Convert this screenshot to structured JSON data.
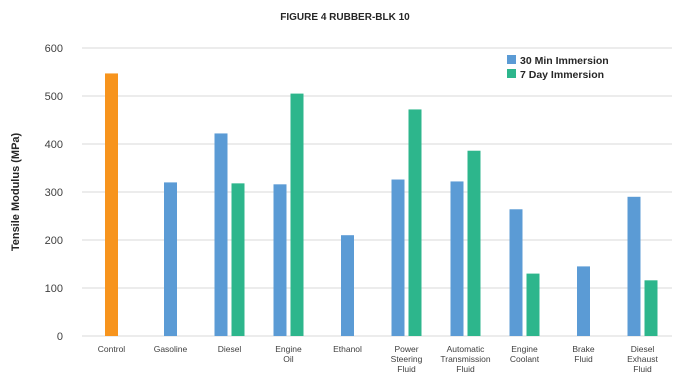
{
  "chart_data": {
    "type": "bar",
    "title": "FIGURE 4 RUBBER-BLK 10",
    "xlabel": "",
    "ylabel": "Tensile Modulus (MPa)",
    "ylim": [
      0,
      600
    ],
    "yticks": [
      0,
      100,
      200,
      300,
      400,
      500,
      600
    ],
    "grid": true,
    "legend_position": "top-right",
    "categories": [
      [
        "Control"
      ],
      [
        "Gasoline"
      ],
      [
        "Diesel"
      ],
      [
        "Engine",
        "Oil"
      ],
      [
        "Ethanol"
      ],
      [
        "Power",
        "Steering",
        "Fluid"
      ],
      [
        "Automatic",
        "Transmission",
        "Fluid"
      ],
      [
        "Engine",
        "Coolant"
      ],
      [
        "Brake",
        "Fluid"
      ],
      [
        "Diesel",
        "Exhaust",
        "Fluid"
      ]
    ],
    "series": [
      {
        "name": "Control",
        "color": "#f7941d",
        "in_legend": false,
        "values": [
          547,
          null,
          null,
          null,
          null,
          null,
          null,
          null,
          null,
          null
        ]
      },
      {
        "name": "30 Min Immersion",
        "color": "#5b9bd5",
        "in_legend": true,
        "values": [
          null,
          320,
          422,
          316,
          210,
          326,
          322,
          264,
          145,
          290
        ]
      },
      {
        "name": "7 Day Immersion",
        "color": "#2db68c",
        "in_legend": true,
        "values": [
          null,
          null,
          318,
          505,
          null,
          472,
          386,
          130,
          null,
          116
        ]
      }
    ]
  }
}
